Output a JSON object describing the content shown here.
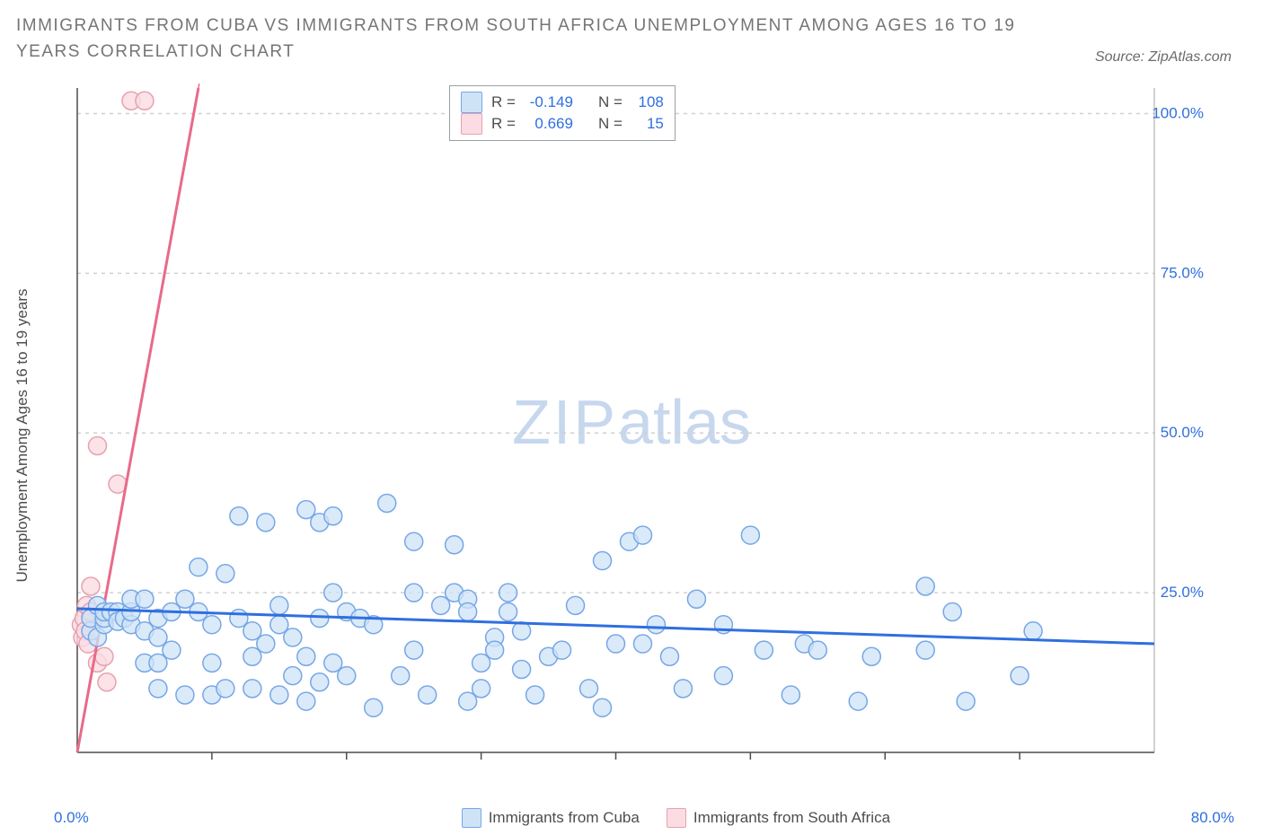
{
  "title": "IMMIGRANTS FROM CUBA VS IMMIGRANTS FROM SOUTH AFRICA UNEMPLOYMENT AMONG AGES 16 TO 19 YEARS CORRELATION CHART",
  "source": "Source: ZipAtlas.com",
  "ylabel": "Unemployment Among Ages 16 to 19 years",
  "watermark_a": "ZIP",
  "watermark_b": "atlas",
  "colors": {
    "title": "#757575",
    "axis_text": "#4d4d4d",
    "blue_text": "#2f6fe0",
    "grid": "#d0d0d0",
    "axis_line": "#4d4d4d",
    "border": "#6b6b6b",
    "cuba_fill": "#cfe3f7",
    "cuba_stroke": "#76a7e6",
    "sa_fill": "#fadce2",
    "sa_stroke": "#e8a1b0",
    "cuba_line": "#2f6fe0",
    "sa_line": "#e86a8a",
    "watermark": "#b9ceea"
  },
  "chart": {
    "type": "scatter",
    "x_domain": [
      0,
      80
    ],
    "y_domain": [
      0,
      104
    ],
    "y_ticks": [
      25,
      50,
      75,
      100
    ],
    "y_tick_labels": [
      "25.0%",
      "50.0%",
      "75.0%",
      "100.0%"
    ],
    "x_ticks": [
      10,
      20,
      30,
      40,
      50,
      60,
      70
    ],
    "x_min_label": "0.0%",
    "x_max_label": "80.0%",
    "marker_radius": 10,
    "marker_stroke_width": 1.5,
    "cuba_trend": {
      "y_at_x0": 22.5,
      "y_at_xmax": 17
    },
    "sa_trend": {
      "y_at_x0": 0,
      "y_at_x": 9,
      "y_val_at_x": 104
    },
    "trend_width": 3,
    "cuba_points": [
      [
        1,
        19
      ],
      [
        1,
        21
      ],
      [
        1.5,
        18
      ],
      [
        1.5,
        23
      ],
      [
        2,
        20
      ],
      [
        2,
        21
      ],
      [
        2,
        22
      ],
      [
        2.5,
        22
      ],
      [
        3,
        22
      ],
      [
        3,
        20.5
      ],
      [
        3.5,
        21
      ],
      [
        4,
        20
      ],
      [
        4,
        22
      ],
      [
        4,
        24
      ],
      [
        5,
        19
      ],
      [
        5,
        24
      ],
      [
        5,
        14
      ],
      [
        6,
        21
      ],
      [
        6,
        18
      ],
      [
        6,
        10
      ],
      [
        6,
        14
      ],
      [
        7,
        22
      ],
      [
        7,
        16
      ],
      [
        8,
        24
      ],
      [
        8,
        9
      ],
      [
        9,
        22
      ],
      [
        9,
        29
      ],
      [
        10,
        20
      ],
      [
        10,
        14
      ],
      [
        10,
        9
      ],
      [
        11,
        28
      ],
      [
        11,
        10
      ],
      [
        12,
        21
      ],
      [
        12,
        37
      ],
      [
        13,
        19
      ],
      [
        13,
        10
      ],
      [
        13,
        15
      ],
      [
        14,
        17
      ],
      [
        14,
        36
      ],
      [
        15,
        20
      ],
      [
        15,
        23
      ],
      [
        15,
        9
      ],
      [
        16,
        12
      ],
      [
        16,
        18
      ],
      [
        17,
        38
      ],
      [
        17,
        8
      ],
      [
        17,
        15
      ],
      [
        18,
        21
      ],
      [
        18,
        11
      ],
      [
        18,
        36
      ],
      [
        19,
        37
      ],
      [
        19,
        25
      ],
      [
        19,
        14
      ],
      [
        20,
        22
      ],
      [
        20,
        12
      ],
      [
        21,
        21
      ],
      [
        22,
        20
      ],
      [
        22,
        7
      ],
      [
        23,
        39
      ],
      [
        24,
        12
      ],
      [
        25,
        25
      ],
      [
        25,
        33
      ],
      [
        25,
        16
      ],
      [
        26,
        9
      ],
      [
        27,
        23
      ],
      [
        28,
        32.5
      ],
      [
        28,
        25
      ],
      [
        29,
        24
      ],
      [
        29,
        22
      ],
      [
        29,
        8
      ],
      [
        30,
        14
      ],
      [
        30,
        10
      ],
      [
        31,
        18
      ],
      [
        31,
        16
      ],
      [
        32,
        25
      ],
      [
        32,
        22
      ],
      [
        33,
        13
      ],
      [
        33,
        19
      ],
      [
        34,
        9
      ],
      [
        35,
        15
      ],
      [
        36,
        16
      ],
      [
        37,
        23
      ],
      [
        38,
        10
      ],
      [
        39,
        30
      ],
      [
        39,
        7
      ],
      [
        40,
        17
      ],
      [
        41,
        33
      ],
      [
        42,
        17
      ],
      [
        42,
        34
      ],
      [
        43,
        20
      ],
      [
        44,
        15
      ],
      [
        45,
        10
      ],
      [
        46,
        24
      ],
      [
        48,
        12
      ],
      [
        48,
        20
      ],
      [
        50,
        34
      ],
      [
        51,
        16
      ],
      [
        53,
        9
      ],
      [
        54,
        17
      ],
      [
        55,
        16
      ],
      [
        58,
        8
      ],
      [
        59,
        15
      ],
      [
        63,
        26
      ],
      [
        63,
        16
      ],
      [
        65,
        22
      ],
      [
        66,
        8
      ],
      [
        70,
        12
      ],
      [
        71,
        19
      ]
    ],
    "sa_points": [
      [
        0.3,
        20
      ],
      [
        0.4,
        18
      ],
      [
        0.5,
        21
      ],
      [
        0.6,
        19
      ],
      [
        0.7,
        23
      ],
      [
        0.8,
        17
      ],
      [
        1,
        22
      ],
      [
        1,
        26
      ],
      [
        1.5,
        48
      ],
      [
        1.5,
        14
      ],
      [
        2,
        15
      ],
      [
        2.2,
        11
      ],
      [
        3,
        42
      ],
      [
        4,
        102
      ],
      [
        5,
        102
      ]
    ]
  },
  "legend_top": {
    "rows": [
      {
        "swatch_fill": "#cfe3f7",
        "swatch_stroke": "#76a7e6",
        "r_label": "R =",
        "r_val": "-0.149",
        "n_label": "N =",
        "n_val": "108"
      },
      {
        "swatch_fill": "#fadce2",
        "swatch_stroke": "#e8a1b0",
        "r_label": "R =",
        "r_val": "0.669",
        "n_label": "N =",
        "n_val": "15"
      }
    ]
  },
  "legend_bottom": {
    "items": [
      {
        "fill": "#cfe3f7",
        "stroke": "#76a7e6",
        "label": "Immigrants from Cuba"
      },
      {
        "fill": "#fadce2",
        "stroke": "#e8a1b0",
        "label": "Immigrants from South Africa"
      }
    ]
  }
}
